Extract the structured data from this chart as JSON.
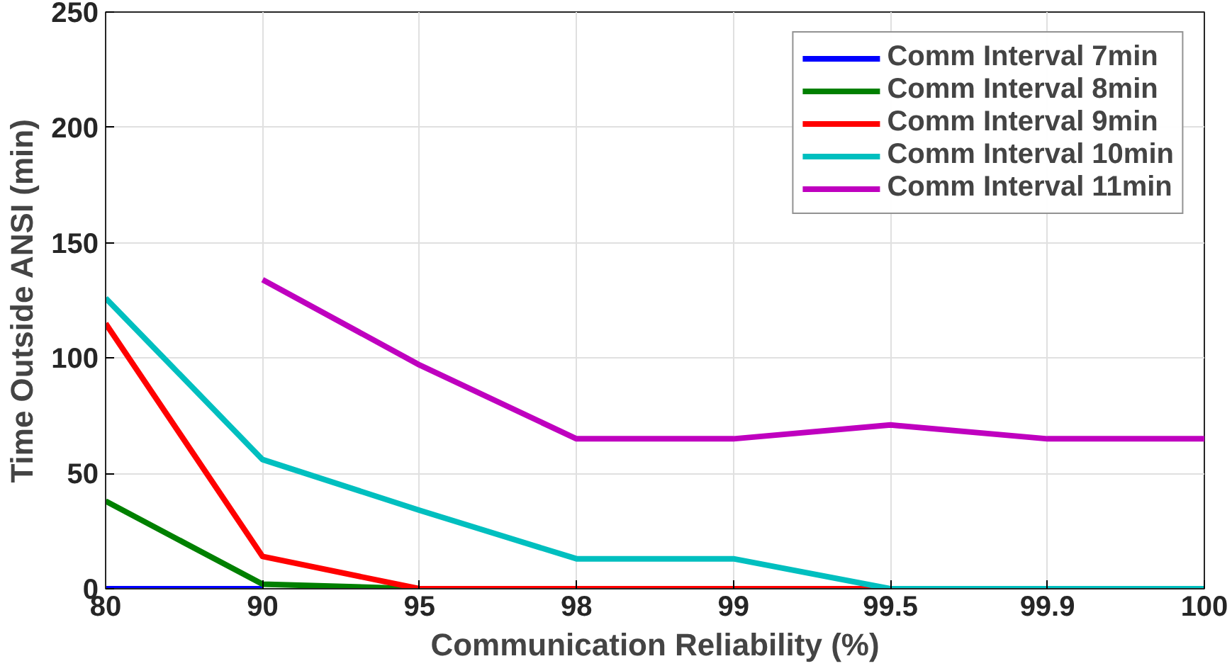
{
  "chart_data": {
    "type": "line",
    "xlabel": "Communication Reliability (%)",
    "ylabel": "Time Outside ANSI (min)",
    "categories": [
      "80",
      "90",
      "95",
      "98",
      "99",
      "99.5",
      "99.9",
      "100"
    ],
    "ylim": [
      0,
      250
    ],
    "yticks": [
      0,
      50,
      100,
      150,
      200,
      250
    ],
    "grid": true,
    "legend": "top right",
    "line_style": "solid",
    "series": [
      {
        "name": "Comm Interval 7min",
        "color": "#0000ff",
        "values": [
          0,
          0,
          null,
          null,
          null,
          null,
          null,
          null
        ]
      },
      {
        "name": "Comm Interval 8min",
        "color": "#008000",
        "values": [
          38,
          2,
          0,
          null,
          null,
          null,
          null,
          null
        ]
      },
      {
        "name": "Comm Interval 9min",
        "color": "#ff0000",
        "values": [
          115,
          14,
          0,
          0,
          0,
          0,
          null,
          null
        ]
      },
      {
        "name": "Comm Interval 10min",
        "color": "#00bfbf",
        "values": [
          126,
          56,
          34,
          13,
          13,
          0,
          0,
          0
        ]
      },
      {
        "name": "Comm Interval 11min",
        "color": "#bf00bf",
        "values": [
          null,
          134,
          97,
          65,
          65,
          71,
          65,
          65
        ]
      }
    ]
  }
}
